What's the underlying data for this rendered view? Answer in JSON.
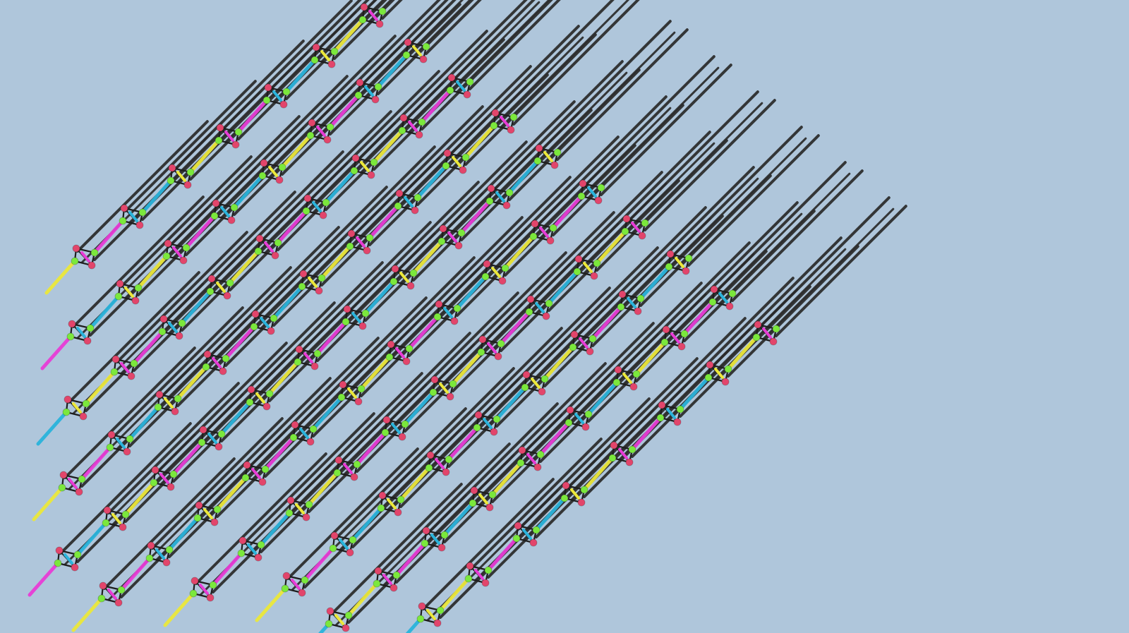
{
  "scene": {
    "background": "#afc6db",
    "rod_color": "#2a2a2a",
    "node_color_a": "#e2456b",
    "node_color_b": "#7be83c",
    "link_colors": [
      "#e83cd6",
      "#ece83a",
      "#2ab4dc"
    ],
    "lattice": {
      "slices": 10,
      "cells_per_slice": 12
    }
  }
}
